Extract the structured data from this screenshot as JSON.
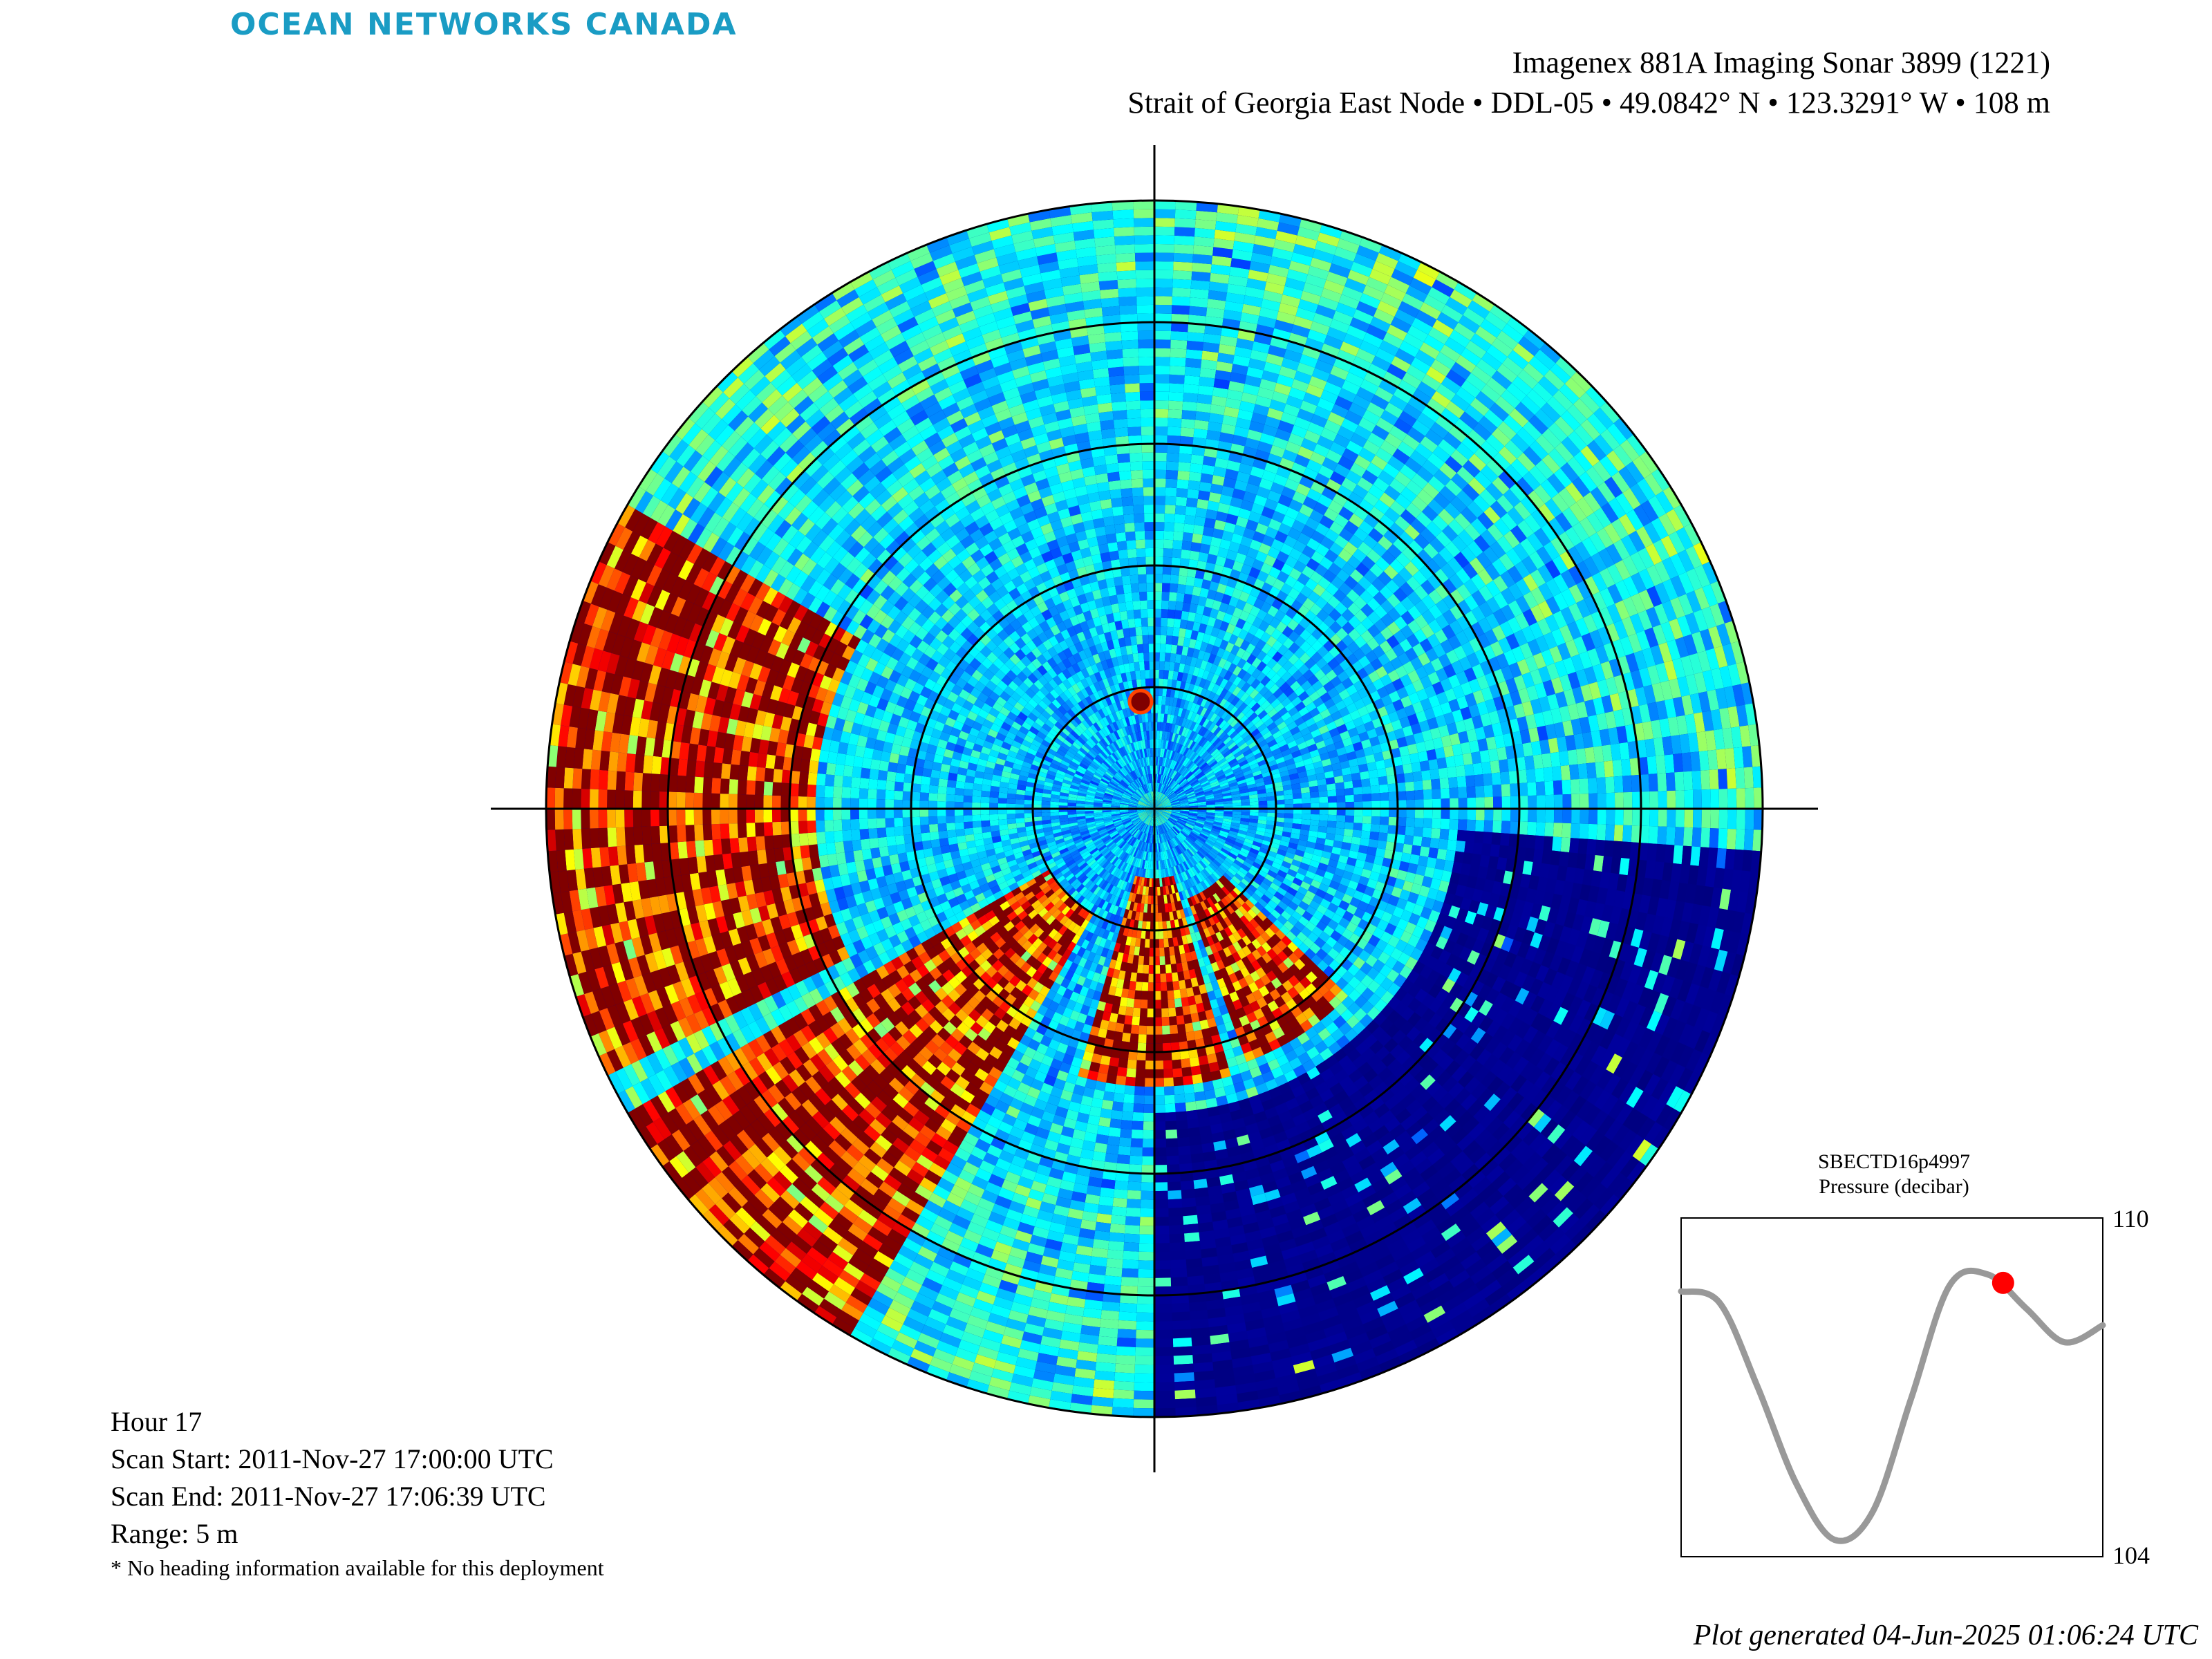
{
  "logo_text": "OCEAN NETWORKS CANADA",
  "title": {
    "line1": "Imagenex 881A Imaging Sonar 3899 (1221)",
    "line2": "Strait of Georgia East Node • DDL-05 • 49.0842° N • 123.3291° W • 108 m"
  },
  "scan_info": {
    "hour": "Hour 17",
    "scan_start": "Scan Start: 2011-Nov-27 17:00:00 UTC",
    "scan_end": "Scan End: 2011-Nov-27 17:06:39 UTC",
    "range": "Range: 5 m",
    "note": "* No heading information available for this deployment"
  },
  "generated": "Plot generated 04-Jun-2025 01:06:24 UTC",
  "colors": {
    "background_echo": "#00008f",
    "strong_echo": "#800000",
    "pressure_line": "#999999",
    "pressure_marker": "#ff0000",
    "logo": "#1a9cc4"
  },
  "chart_data": [
    {
      "type": "heatmap",
      "subtype": "polar sonar intensity",
      "title": "",
      "range_m": 5,
      "range_rings_m": [
        1,
        2,
        3,
        4,
        5
      ],
      "colormap": "jet",
      "strong_echo_sectors_deg": [
        {
          "from": 210,
          "to": 240,
          "from_m": 1,
          "to_m": 5
        },
        {
          "from": 135,
          "to": 160,
          "from_m": 0.8,
          "to_m": 2.2
        },
        {
          "from": 165,
          "to": 195,
          "from_m": 0.6,
          "to_m": 2.3
        },
        {
          "from": 245,
          "to": 300,
          "from_m": 2.8,
          "to_m": 5
        }
      ],
      "quiet_sector_deg": {
        "from": 95,
        "to": 180,
        "from_m": 2.5,
        "to_m": 5
      }
    },
    {
      "type": "line",
      "title": "SBECTD16p4997",
      "subtitle": "Pressure (decibar)",
      "ylim": [
        104,
        110
      ],
      "ytick_labels": [
        "110",
        "104"
      ],
      "series": [
        {
          "values": [
            108.7,
            108.5,
            107.0,
            105.3,
            104.3,
            104.8,
            106.8,
            108.8,
            109.0,
            108.4,
            107.8,
            108.1
          ]
        }
      ],
      "marker": {
        "index": 8.4,
        "value": 108.85
      }
    }
  ]
}
